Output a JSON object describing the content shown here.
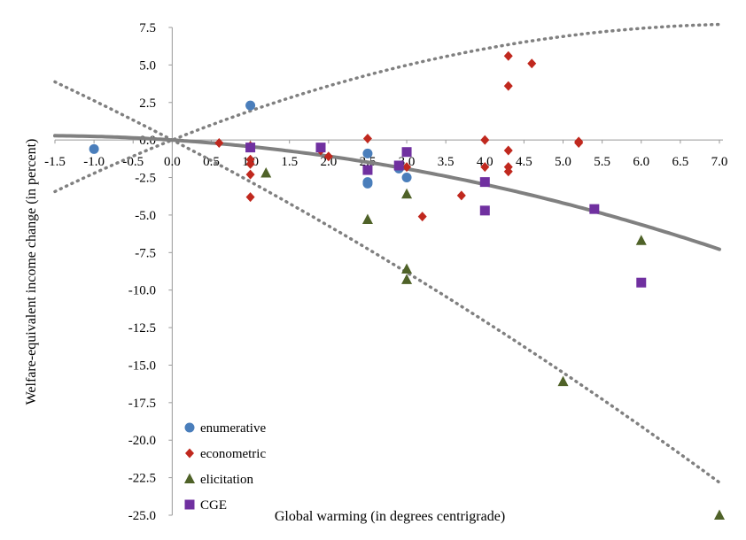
{
  "chart_data": {
    "type": "scatter",
    "title": "",
    "xlabel": "Global warming (in degrees centrigrade)",
    "ylabel": "Welfare-equivalent income change (in percent)",
    "xlim": [
      -1.5,
      7.0
    ],
    "ylim": [
      -25.0,
      7.5
    ],
    "x_ticks": [
      "-1.5",
      "-1.0",
      "-0.5",
      "0.0",
      "0.5",
      "1.0",
      "1.5",
      "2.0",
      "2.5",
      "3.0",
      "3.5",
      "4.0",
      "4.5",
      "5.0",
      "5.5",
      "6.0",
      "6.5",
      "7.0"
    ],
    "y_ticks": [
      "7.5",
      "5.0",
      "2.5",
      "0.0",
      "-2.5",
      "-5.0",
      "-7.5",
      "-10.0",
      "-12.5",
      "-15.0",
      "-17.5",
      "-20.0",
      "-22.5",
      "-25.0"
    ],
    "legend_position": "bottom-left",
    "series": [
      {
        "name": "enumerative",
        "marker": "circle",
        "color": "#4a7ebb",
        "points": [
          [
            -1.0,
            -0.6
          ],
          [
            1.0,
            2.3
          ],
          [
            2.5,
            -0.9
          ],
          [
            2.5,
            -2.8
          ],
          [
            2.5,
            -2.9
          ],
          [
            2.9,
            -1.9
          ],
          [
            3.0,
            -2.5
          ]
        ]
      },
      {
        "name": "econometric",
        "marker": "diamond",
        "color": "#c0281e",
        "points": [
          [
            0.6,
            -0.2
          ],
          [
            1.0,
            -0.4
          ],
          [
            1.0,
            -1.3
          ],
          [
            1.0,
            -1.6
          ],
          [
            1.0,
            -2.3
          ],
          [
            1.0,
            -3.8
          ],
          [
            1.9,
            -0.7
          ],
          [
            2.0,
            -1.1
          ],
          [
            2.5,
            0.1
          ],
          [
            3.0,
            -1.8
          ],
          [
            3.2,
            -5.1
          ],
          [
            3.7,
            -3.7
          ],
          [
            4.0,
            0.0
          ],
          [
            4.0,
            -1.8
          ],
          [
            4.3,
            5.6
          ],
          [
            4.3,
            3.6
          ],
          [
            4.3,
            -0.7
          ],
          [
            4.3,
            -1.8
          ],
          [
            4.3,
            -2.1
          ],
          [
            4.6,
            5.1
          ],
          [
            5.2,
            -0.1
          ],
          [
            5.2,
            -0.2
          ]
        ]
      },
      {
        "name": "elicitation",
        "marker": "triangle",
        "color": "#4f6228",
        "points": [
          [
            1.2,
            -2.2
          ],
          [
            2.5,
            -5.3
          ],
          [
            3.0,
            -3.6
          ],
          [
            3.0,
            -8.6
          ],
          [
            3.0,
            -9.3
          ],
          [
            5.0,
            -16.1
          ],
          [
            6.0,
            -6.7
          ],
          [
            7.0,
            -25.0
          ]
        ]
      },
      {
        "name": "CGE",
        "marker": "square",
        "color": "#7030a0",
        "points": [
          [
            1.0,
            -0.5
          ],
          [
            1.9,
            -0.5
          ],
          [
            2.5,
            -2.0
          ],
          [
            2.9,
            -1.7
          ],
          [
            3.0,
            -0.8
          ],
          [
            4.0,
            -2.8
          ],
          [
            4.0,
            -4.7
          ],
          [
            5.4,
            -4.6
          ],
          [
            6.0,
            -9.5
          ]
        ]
      }
    ],
    "fitted_curves": [
      {
        "name": "best-fit",
        "style": "solid",
        "color": "#808080",
        "coeffs": [
          0.0,
          -0.34,
          -0.1
        ]
      },
      {
        "name": "upper-bound",
        "style": "dotted",
        "color": "#808080",
        "coeffs": [
          0.0,
          2.08,
          -0.14
        ]
      },
      {
        "name": "lower-bound",
        "style": "dotted",
        "color": "#808080",
        "coeffs": [
          0.0,
          -2.7,
          -0.08
        ]
      }
    ]
  }
}
